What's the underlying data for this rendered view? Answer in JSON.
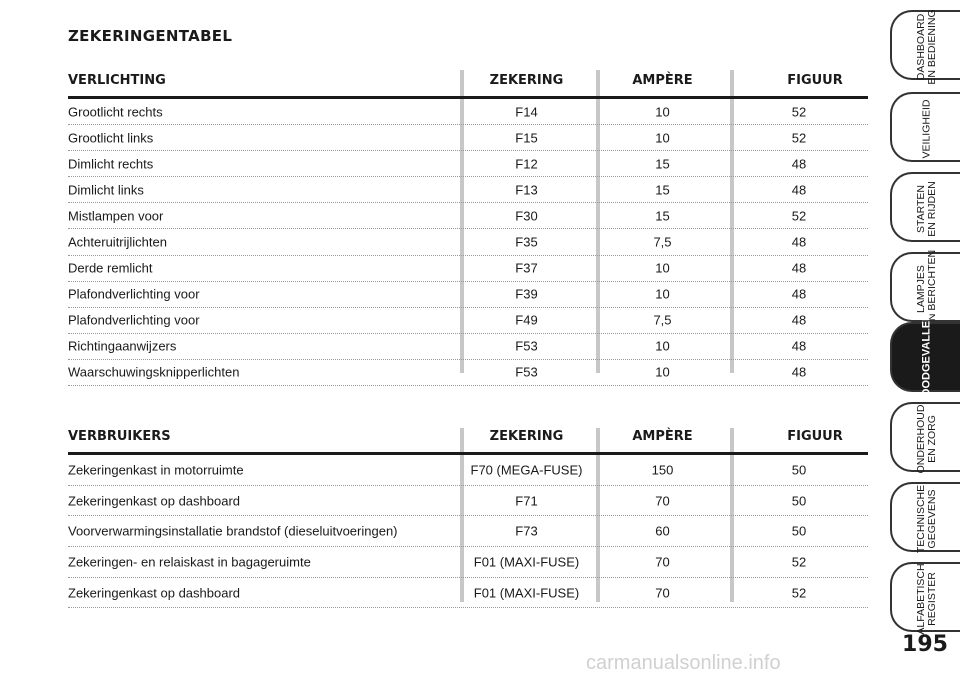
{
  "title": "ZEKERINGENTABEL",
  "lighting": {
    "headers": {
      "label": "VERLICHTING",
      "fuse": "ZEKERING",
      "amp": "AMPÈRE",
      "fig": "FIGUUR"
    },
    "rows": [
      {
        "label": "Grootlicht rechts",
        "fuse": "F14",
        "amp": "10",
        "fig": "52"
      },
      {
        "label": "Grootlicht links",
        "fuse": "F15",
        "amp": "10",
        "fig": "52"
      },
      {
        "label": "Dimlicht rechts",
        "fuse": "F12",
        "amp": "15",
        "fig": "48"
      },
      {
        "label": "Dimlicht links",
        "fuse": "F13",
        "amp": "15",
        "fig": "48"
      },
      {
        "label": "Mistlampen voor",
        "fuse": "F30",
        "amp": "15",
        "fig": "52"
      },
      {
        "label": "Achteruitrijlichten",
        "fuse": "F35",
        "amp": "7,5",
        "fig": "48"
      },
      {
        "label": "Derde remlicht",
        "fuse": "F37",
        "amp": "10",
        "fig": "48"
      },
      {
        "label": "Plafondverlichting voor",
        "fuse": "F39",
        "amp": "10",
        "fig": "48"
      },
      {
        "label": "Plafondverlichting voor",
        "fuse": "F49",
        "amp": "7,5",
        "fig": "48"
      },
      {
        "label": "Richtingaanwijzers",
        "fuse": "F53",
        "amp": "10",
        "fig": "48"
      },
      {
        "label": "Waarschuwingsknipperlichten",
        "fuse": "F53",
        "amp": "10",
        "fig": "48"
      }
    ]
  },
  "consumers": {
    "headers": {
      "label": "VERBRUIKERS",
      "fuse": "ZEKERING",
      "amp": "AMPÈRE",
      "fig": "FIGUUR"
    },
    "rows": [
      {
        "label": "Zekeringenkast in motorruimte",
        "fuse": "F70 (MEGA-FUSE)",
        "amp": "150",
        "fig": "50"
      },
      {
        "label": "Zekeringenkast op dashboard",
        "fuse": "F71",
        "amp": "70",
        "fig": "50"
      },
      {
        "label": "Voorverwarmingsinstallatie brandstof (dieseluitvoeringen)",
        "fuse": "F73",
        "amp": "60",
        "fig": "50"
      },
      {
        "label": "Zekeringen- en relaiskast in bagageruimte",
        "fuse": "F01 (MAXI-FUSE)",
        "amp": "70",
        "fig": "52"
      },
      {
        "label": "Zekeringenkast op dashboard",
        "fuse": "F01 (MAXI-FUSE)",
        "amp": "70",
        "fig": "52"
      }
    ]
  },
  "tabs": [
    {
      "label": "DASHBOARD\nEN BEDIENING",
      "active": false
    },
    {
      "label": "VEILIGHEID",
      "active": false
    },
    {
      "label": "STARTEN\nEN RIJDEN",
      "active": false
    },
    {
      "label": "LAMPJES\nEN BERICHTEN",
      "active": false
    },
    {
      "label": "NOODGEVALLEN",
      "active": true
    },
    {
      "label": "ONDERHOUD\nEN ZORG",
      "active": false
    },
    {
      "label": "TECHNISCHE\nGEGEVENS",
      "active": false
    },
    {
      "label": "ALFABETISCH\nREGISTER",
      "active": false
    }
  ],
  "page_number": "195",
  "watermark": "carmanualsonline.info"
}
